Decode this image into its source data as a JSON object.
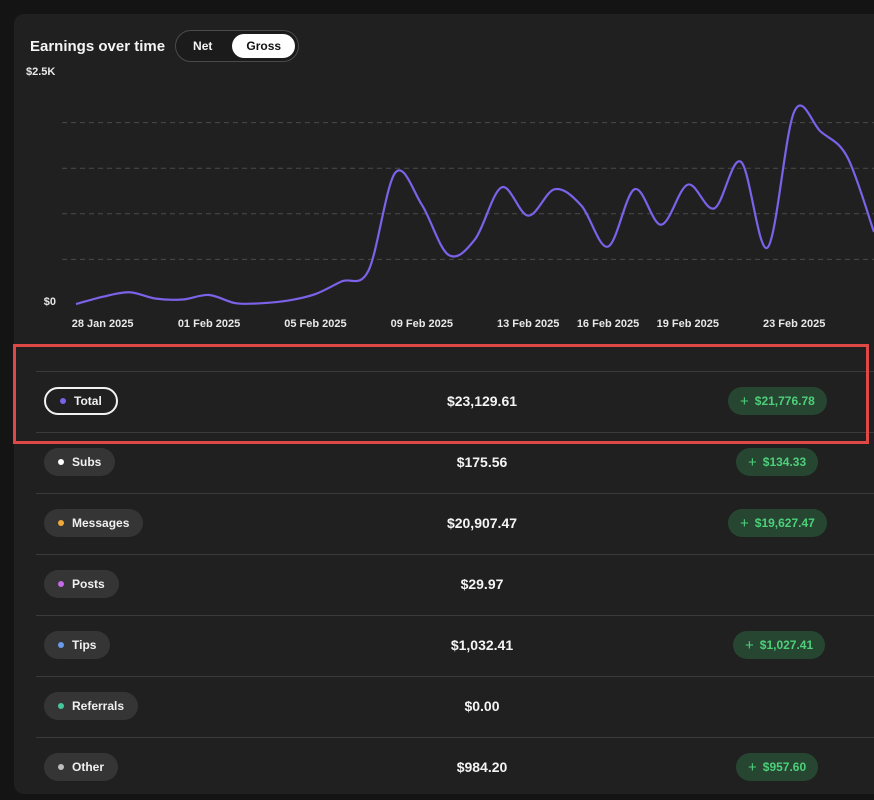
{
  "header": {
    "title": "Earnings over time",
    "toggle": {
      "net_label": "Net",
      "gross_label": "Gross",
      "selected": "Gross"
    }
  },
  "chart_data": {
    "type": "line",
    "title": "",
    "xlabel": "",
    "ylabel": "",
    "y_tick_labels": [
      "$0",
      "$2.5K"
    ],
    "x_tick_labels": [
      "28 Jan 2025",
      "01 Feb 2025",
      "05 Feb 2025",
      "09 Feb 2025",
      "13 Feb 2025",
      "16 Feb 2025",
      "19 Feb 2025",
      "23 Feb 2025"
    ],
    "ylim": [
      0,
      2500
    ],
    "grid": "dashed-horizontal",
    "line_color": "#7b62e8",
    "series": [
      {
        "x": [
          "27 Jan 2025",
          "28 Jan 2025",
          "29 Jan 2025",
          "30 Jan 2025",
          "31 Jan 2025",
          "01 Feb 2025",
          "02 Feb 2025",
          "03 Feb 2025",
          "04 Feb 2025",
          "05 Feb 2025",
          "06 Feb 2025",
          "07 Feb 2025",
          "08 Feb 2025",
          "09 Feb 2025",
          "10 Feb 2025",
          "11 Feb 2025",
          "12 Feb 2025",
          "13 Feb 2025",
          "14 Feb 2025",
          "15 Feb 2025",
          "16 Feb 2025",
          "17 Feb 2025",
          "18 Feb 2025",
          "19 Feb 2025",
          "20 Feb 2025",
          "21 Feb 2025",
          "22 Feb 2025",
          "23 Feb 2025",
          "24 Feb 2025",
          "25 Feb 2025",
          "26 Feb 2025"
        ],
        "values": [
          10,
          90,
          140,
          70,
          60,
          110,
          20,
          20,
          50,
          120,
          260,
          380,
          1450,
          1100,
          550,
          720,
          1290,
          980,
          1270,
          1090,
          640,
          1270,
          880,
          1320,
          1060,
          1570,
          630,
          2120,
          1900,
          1620,
          800
        ]
      }
    ]
  },
  "rows": [
    {
      "label": "Total",
      "dot_color": "#7b62e8",
      "value": "$23,129.61",
      "delta": "$21,776.78"
    },
    {
      "label": "Subs",
      "dot_color": "#ffffff",
      "value": "$175.56",
      "delta": "$134.33"
    },
    {
      "label": "Messages",
      "dot_color": "#f0a93a",
      "value": "$20,907.47",
      "delta": "$19,627.47"
    },
    {
      "label": "Posts",
      "dot_color": "#c56ae8",
      "value": "$29.97",
      "delta": ""
    },
    {
      "label": "Tips",
      "dot_color": "#6a9bea",
      "value": "$1,032.41",
      "delta": "$1,027.41"
    },
    {
      "label": "Referrals",
      "dot_color": "#46c79a",
      "value": "$0.00",
      "delta": ""
    },
    {
      "label": "Other",
      "dot_color": "#bdbdbd",
      "value": "$984.20",
      "delta": "$957.60"
    }
  ],
  "colors": {
    "panel_bg": "#202020",
    "accent": "#7b62e8",
    "positive": "#4ecf7a",
    "highlight": "#e04848"
  }
}
